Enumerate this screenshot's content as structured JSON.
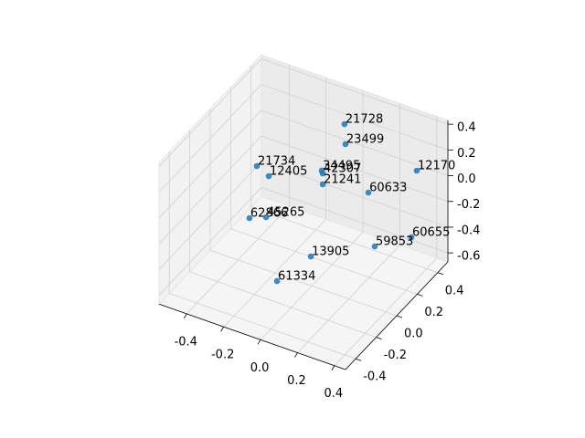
{
  "chart_data": {
    "type": "scatter3d",
    "labels": [
      "21728",
      "23499",
      "12170",
      "21734",
      "12405",
      "34495",
      "42307",
      "21241",
      "60633",
      "62866",
      "45265",
      "60655",
      "59853",
      "13905",
      "61334"
    ],
    "x": [
      0.011,
      0.016,
      0.347,
      -0.353,
      -0.233,
      -0.001,
      0.059,
      0.004,
      0.196,
      -0.282,
      -0.303,
      0.373,
      0.341,
      0.106,
      -0.022
    ],
    "y": [
      0.3,
      0.3,
      0.4,
      0.1,
      0.0,
      0.1,
      0.0,
      0.1,
      0.2,
      -0.1,
      0.1,
      0.3,
      0.0,
      -0.2,
      -0.3
    ],
    "z": [
      0.342,
      0.189,
      0.066,
      0.0,
      0.066,
      0.142,
      0.234,
      0.038,
      -0.013,
      -0.201,
      -0.372,
      -0.355,
      -0.191,
      -0.22,
      -0.392
    ],
    "color": "#1f77b4",
    "xlim": [
      -0.55,
      0.46
    ],
    "ylim": [
      -0.5,
      0.5
    ],
    "zlim": [
      -0.67,
      0.43
    ],
    "xticks": [
      -0.4,
      -0.2,
      {
        "value": 0,
        "label": "0.0"
      },
      0.2,
      0.4
    ],
    "yticks": [
      -0.4,
      -0.2,
      {
        "value": 0,
        "label": "0.0"
      },
      0.2,
      0.4
    ],
    "zticks": [
      -0.6,
      -0.4,
      -0.2,
      {
        "value": 0,
        "label": "0.0"
      },
      0.2,
      0.4
    ],
    "grid": true
  }
}
